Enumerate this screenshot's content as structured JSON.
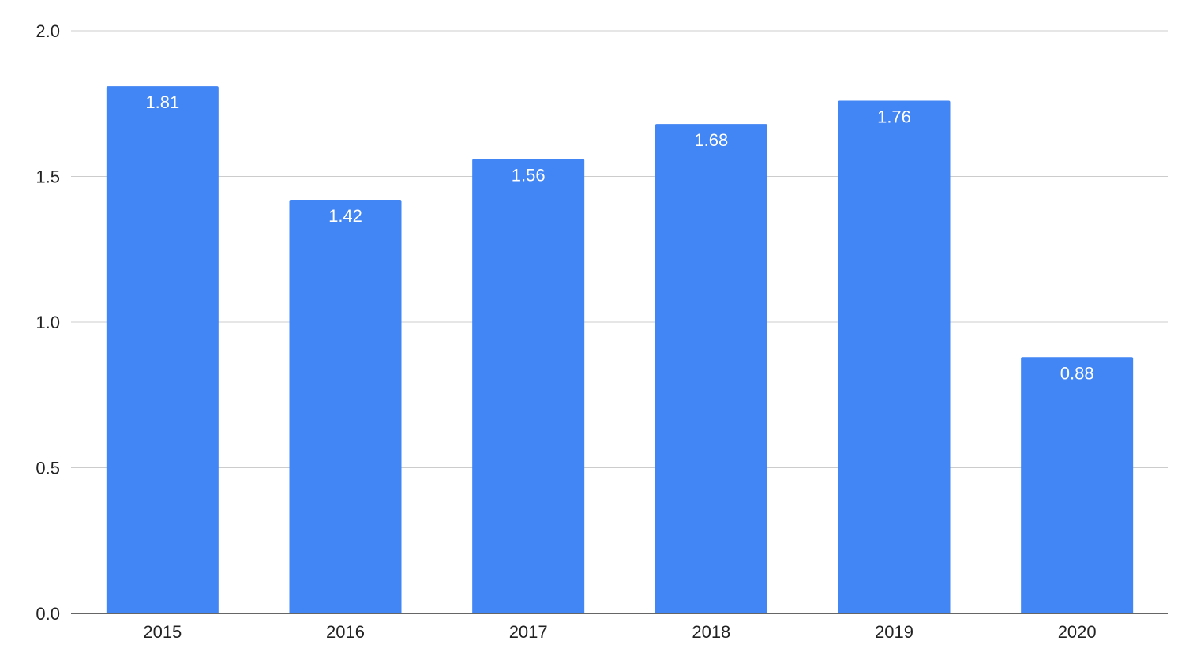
{
  "chart_data": {
    "type": "bar",
    "categories": [
      "2015",
      "2016",
      "2017",
      "2018",
      "2019",
      "2020"
    ],
    "values": [
      1.81,
      1.42,
      1.56,
      1.68,
      1.76,
      0.88
    ],
    "data_labels": [
      "1.81",
      "1.42",
      "1.56",
      "1.68",
      "1.76",
      "0.88"
    ],
    "title": "",
    "xlabel": "",
    "ylabel": "",
    "ylim": [
      0,
      2.0
    ],
    "yticks": [
      0.0,
      0.5,
      1.0,
      1.5,
      2.0
    ],
    "ytick_labels": [
      "0.0",
      "0.5",
      "1.0",
      "1.5",
      "2.0"
    ],
    "grid": true,
    "legend": "none",
    "bar_color": "#4285f4"
  }
}
